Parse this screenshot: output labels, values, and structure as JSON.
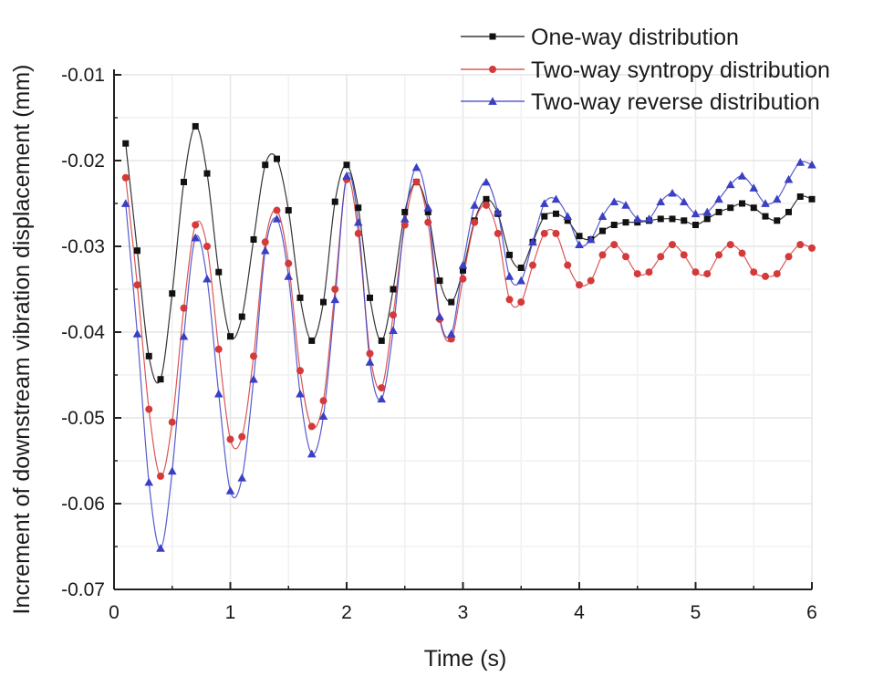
{
  "chart_data": {
    "type": "line",
    "title": "",
    "xlabel": "Time (s)",
    "ylabel": "Increment of downstream vibration displacement (mm)",
    "xlim": [
      0,
      6
    ],
    "ylim": [
      -0.07,
      -0.01
    ],
    "xticks": [
      0,
      1,
      2,
      3,
      4,
      5,
      6
    ],
    "xtick_labels": [
      "0",
      "1",
      "2",
      "3",
      "4",
      "5",
      "6"
    ],
    "yticks": [
      -0.07,
      -0.06,
      -0.05,
      -0.04,
      -0.03,
      -0.02,
      -0.01
    ],
    "ytick_labels": [
      "-0.07",
      "-0.06",
      "-0.05",
      "-0.04",
      "-0.03",
      "-0.02",
      "-0.01"
    ],
    "grid": true,
    "legend_position": "top-right",
    "x": [
      0.1,
      0.2,
      0.3,
      0.4,
      0.5,
      0.6,
      0.7,
      0.8,
      0.9,
      1.0,
      1.1,
      1.2,
      1.3,
      1.4,
      1.5,
      1.6,
      1.7,
      1.8,
      1.9,
      2.0,
      2.1,
      2.2,
      2.3,
      2.4,
      2.5,
      2.6,
      2.7,
      2.8,
      2.9,
      3.0,
      3.1,
      3.2,
      3.3,
      3.4,
      3.5,
      3.6,
      3.7,
      3.8,
      3.9,
      4.0,
      4.1,
      4.2,
      4.3,
      4.4,
      4.5,
      4.6,
      4.7,
      4.8,
      4.9,
      5.0,
      5.1,
      5.2,
      5.3,
      5.4,
      5.5,
      5.6,
      5.7,
      5.8,
      5.9,
      6.0
    ],
    "series": [
      {
        "name": "One-way distribution",
        "color": "#111111",
        "marker": "square",
        "values": [
          -0.018,
          -0.0305,
          -0.0428,
          -0.0455,
          -0.0355,
          -0.0225,
          -0.016,
          -0.0215,
          -0.033,
          -0.0405,
          -0.0382,
          -0.0292,
          -0.0205,
          -0.0198,
          -0.0258,
          -0.036,
          -0.041,
          -0.0365,
          -0.0248,
          -0.0205,
          -0.0255,
          -0.036,
          -0.041,
          -0.035,
          -0.026,
          -0.0225,
          -0.026,
          -0.034,
          -0.0365,
          -0.0328,
          -0.027,
          -0.0245,
          -0.0262,
          -0.031,
          -0.0325,
          -0.0295,
          -0.0265,
          -0.0262,
          -0.027,
          -0.0288,
          -0.0292,
          -0.0282,
          -0.0275,
          -0.0272,
          -0.0272,
          -0.027,
          -0.0268,
          -0.0268,
          -0.027,
          -0.0275,
          -0.0268,
          -0.026,
          -0.0255,
          -0.025,
          -0.0255,
          -0.0265,
          -0.027,
          -0.026,
          -0.0242,
          -0.0245
        ]
      },
      {
        "name": "Two-way syntropy distribution",
        "color": "#d43a3a",
        "marker": "circle",
        "values": [
          -0.022,
          -0.0345,
          -0.049,
          -0.0568,
          -0.0505,
          -0.0372,
          -0.0275,
          -0.03,
          -0.042,
          -0.0525,
          -0.0522,
          -0.0428,
          -0.0295,
          -0.0258,
          -0.032,
          -0.0445,
          -0.051,
          -0.048,
          -0.035,
          -0.0222,
          -0.0285,
          -0.0425,
          -0.0465,
          -0.038,
          -0.0275,
          -0.0225,
          -0.0272,
          -0.0385,
          -0.0408,
          -0.0338,
          -0.0272,
          -0.0252,
          -0.0285,
          -0.0362,
          -0.0365,
          -0.0322,
          -0.0285,
          -0.0285,
          -0.0322,
          -0.0345,
          -0.034,
          -0.031,
          -0.0298,
          -0.0312,
          -0.0332,
          -0.033,
          -0.0312,
          -0.0298,
          -0.031,
          -0.033,
          -0.0332,
          -0.031,
          -0.0298,
          -0.0308,
          -0.033,
          -0.0335,
          -0.0332,
          -0.0312,
          -0.0298,
          -0.0302
        ]
      },
      {
        "name": "Two-way reverse distribution",
        "color": "#3a3fc4",
        "marker": "triangle",
        "values": [
          -0.025,
          -0.0402,
          -0.0575,
          -0.0652,
          -0.0562,
          -0.0405,
          -0.029,
          -0.0338,
          -0.0472,
          -0.0585,
          -0.057,
          -0.0455,
          -0.0305,
          -0.0268,
          -0.0335,
          -0.0472,
          -0.0542,
          -0.0498,
          -0.0362,
          -0.0218,
          -0.0272,
          -0.0435,
          -0.0478,
          -0.0398,
          -0.0268,
          -0.0208,
          -0.0255,
          -0.0382,
          -0.0402,
          -0.0322,
          -0.0252,
          -0.0225,
          -0.026,
          -0.0335,
          -0.034,
          -0.0295,
          -0.025,
          -0.0245,
          -0.0265,
          -0.0298,
          -0.0292,
          -0.0265,
          -0.0248,
          -0.0252,
          -0.0268,
          -0.0268,
          -0.0248,
          -0.0238,
          -0.0248,
          -0.0262,
          -0.026,
          -0.0245,
          -0.0228,
          -0.0218,
          -0.0232,
          -0.025,
          -0.0245,
          -0.0222,
          -0.0202,
          -0.0205
        ]
      }
    ]
  }
}
